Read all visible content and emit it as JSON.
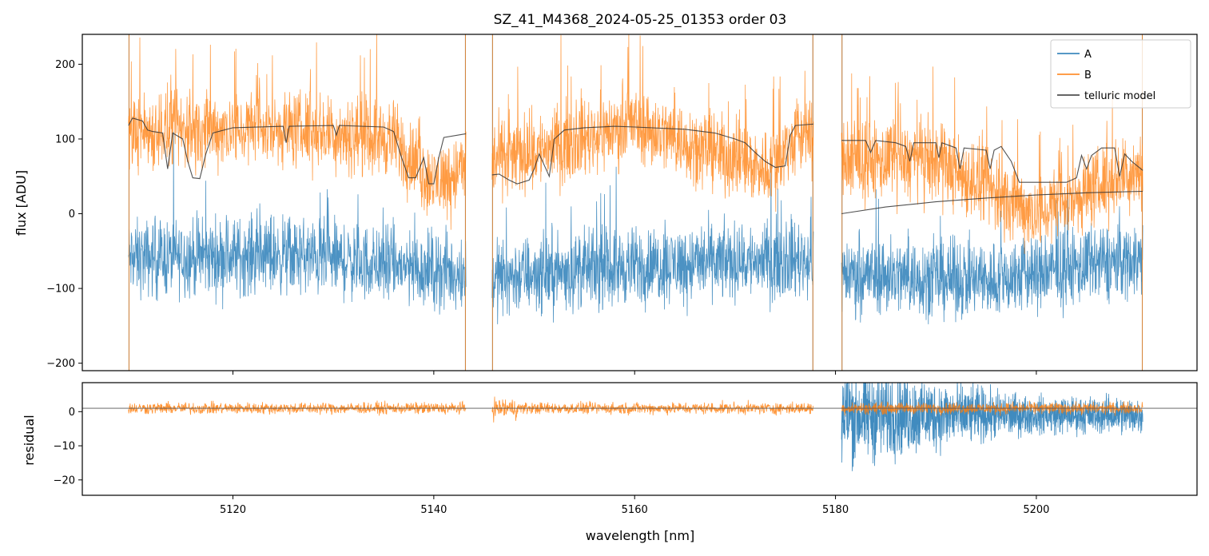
{
  "chart_data": [
    {
      "id": "flux-panel",
      "type": "line",
      "title": "SZ_41_M4368_2024-05-25_01353  order 03",
      "xlabel": "",
      "ylabel": "flux [ADU]",
      "xlim": [
        5105,
        5216
      ],
      "ylim": [
        -210,
        240
      ],
      "yticks": [
        -200,
        -100,
        0,
        100,
        200
      ],
      "yticklabels": [
        "−200",
        "−100",
        "0",
        "100",
        "200"
      ],
      "xticks": [
        5120,
        5140,
        5160,
        5180,
        5200
      ],
      "grid": false,
      "legend": {
        "placement": "top-right",
        "entries": [
          {
            "label": "A",
            "color": "#1f77b4"
          },
          {
            "label": "B",
            "color": "#ff7f0e"
          },
          {
            "label": "telluric model",
            "color": "#333333"
          }
        ]
      },
      "segments": [
        {
          "x_start": 5109.6,
          "x_end": 5143.2
        },
        {
          "x_start": 5145.8,
          "x_end": 5177.8
        },
        {
          "x_start": 5180.6,
          "x_end": 5210.6
        }
      ],
      "series": [
        {
          "name": "A",
          "color": "#1f77b4",
          "baseline": [
            {
              "x": 5110,
              "y": -60
            },
            {
              "x": 5125,
              "y": -55
            },
            {
              "x": 5140,
              "y": -75
            },
            {
              "x": 5146,
              "y": -85
            },
            {
              "x": 5160,
              "y": -70
            },
            {
              "x": 5177,
              "y": -60
            },
            {
              "x": 5181,
              "y": -80
            },
            {
              "x": 5195,
              "y": -90
            },
            {
              "x": 5210,
              "y": -60
            }
          ],
          "noise": 75
        },
        {
          "name": "B",
          "color": "#ff7f0e",
          "baseline": [
            {
              "x": 5110,
              "y": 110
            },
            {
              "x": 5125,
              "y": 115
            },
            {
              "x": 5136,
              "y": 100
            },
            {
              "x": 5140,
              "y": 40
            },
            {
              "x": 5143,
              "y": 60
            },
            {
              "x": 5146,
              "y": 70
            },
            {
              "x": 5160,
              "y": 120
            },
            {
              "x": 5173,
              "y": 60
            },
            {
              "x": 5177,
              "y": 110
            },
            {
              "x": 5181,
              "y": 70
            },
            {
              "x": 5190,
              "y": 70
            },
            {
              "x": 5200,
              "y": 0
            },
            {
              "x": 5210,
              "y": 60
            }
          ],
          "noise": 75
        },
        {
          "name": "telluric model",
          "color": "#333333",
          "points": [
            [
              5109.6,
              118
            ],
            [
              5110,
              128
            ],
            [
              5111,
              124
            ],
            [
              5111.5,
              112
            ],
            [
              5112,
              110
            ],
            [
              5113,
              108
            ],
            [
              5113.5,
              60
            ],
            [
              5114,
              108
            ],
            [
              5115,
              100
            ],
            [
              5115.5,
              70
            ],
            [
              5116,
              48
            ],
            [
              5116.7,
              47
            ],
            [
              5117.3,
              80
            ],
            [
              5118,
              108
            ],
            [
              5120,
              115
            ],
            [
              5125,
              117
            ],
            [
              5125.3,
              95
            ],
            [
              5125.6,
              117
            ],
            [
              5130,
              118
            ],
            [
              5130.3,
              105
            ],
            [
              5130.6,
              118
            ],
            [
              5135,
              116
            ],
            [
              5136,
              110
            ],
            [
              5136.8,
              75
            ],
            [
              5137.5,
              48
            ],
            [
              5138.2,
              48
            ],
            [
              5139,
              75
            ],
            [
              5139.5,
              40
            ],
            [
              5140,
              40
            ],
            [
              5140.5,
              75
            ],
            [
              5141,
              102
            ],
            [
              5143.2,
              107
            ]
          ],
          "segments": [
            [
              [
                5145.8,
                52
              ],
              [
                5146.5,
                53
              ],
              [
                5147.5,
                45
              ],
              [
                5148.3,
                40
              ],
              [
                5149.5,
                45
              ],
              [
                5150,
                60
              ],
              [
                5150.5,
                80
              ],
              [
                5151.5,
                50
              ],
              [
                5152,
                100
              ],
              [
                5153,
                112
              ],
              [
                5155,
                115
              ],
              [
                5158,
                117
              ],
              [
                5160,
                116
              ],
              [
                5165,
                113
              ],
              [
                5168,
                108
              ],
              [
                5170,
                100
              ],
              [
                5171,
                95
              ],
              [
                5172,
                82
              ],
              [
                5173,
                70
              ],
              [
                5174,
                62
              ],
              [
                5175,
                64
              ],
              [
                5175.5,
                105
              ],
              [
                5176,
                118
              ],
              [
                5177.8,
                120
              ]
            ],
            [
              [
                5180.6,
                98
              ],
              [
                5182,
                98
              ],
              [
                5183,
                98
              ],
              [
                5183.5,
                82
              ],
              [
                5184,
                98
              ],
              [
                5186,
                95
              ],
              [
                5187,
                90
              ],
              [
                5187.4,
                70
              ],
              [
                5187.8,
                95
              ],
              [
                5190,
                95
              ],
              [
                5190.3,
                75
              ],
              [
                5190.6,
                95
              ],
              [
                5192,
                88
              ],
              [
                5192.4,
                60
              ],
              [
                5192.8,
                88
              ],
              [
                5195,
                85
              ],
              [
                5195.4,
                60
              ],
              [
                5195.8,
                85
              ],
              [
                5196.5,
                90
              ],
              [
                5197.5,
                70
              ],
              [
                5198.3,
                42
              ],
              [
                5201,
                42
              ],
              [
                5203,
                42
              ],
              [
                5204,
                48
              ],
              [
                5204.5,
                78
              ],
              [
                5205,
                60
              ],
              [
                5205.5,
                78
              ],
              [
                5206.5,
                88
              ],
              [
                5207.8,
                88
              ],
              [
                5208.3,
                50
              ],
              [
                5208.8,
                80
              ],
              [
                5209.5,
                70
              ],
              [
                5210.6,
                58
              ]
            ],
            [
              [
                5180.6,
                0
              ],
              [
                5185,
                9
              ],
              [
                5190,
                16
              ],
              [
                5195,
                21
              ],
              [
                5200,
                25
              ],
              [
                5205,
                28
              ],
              [
                5210.6,
                30
              ]
            ]
          ]
        }
      ]
    },
    {
      "id": "residual-panel",
      "type": "line",
      "title": "",
      "xlabel": "wavelength [nm]",
      "ylabel": "residual",
      "xlim": [
        5105,
        5216
      ],
      "ylim": [
        -24.5,
        8.5
      ],
      "yticks": [
        -20,
        -10,
        0
      ],
      "yticklabels": [
        "−20",
        "−10",
        "0"
      ],
      "xticks": [
        5120,
        5140,
        5160,
        5180,
        5200
      ],
      "xticklabels": [
        "5120",
        "5140",
        "5160",
        "5180",
        "5200"
      ],
      "reference_line": 1,
      "grid": false,
      "series": [
        {
          "name": "A",
          "color": "#1f77b4",
          "x_start": 5180.6,
          "x_end": 5210.6,
          "center": -1,
          "amplitude_start": 22,
          "amplitude_end": 8
        },
        {
          "name": "B",
          "color": "#ff7f0e",
          "segments": [
            {
              "x_start": 5109.6,
              "x_end": 5143.2
            },
            {
              "x_start": 5145.8,
              "x_end": 5177.8
            },
            {
              "x_start": 5180.6,
              "x_end": 5210.6
            }
          ],
          "center": 1,
          "amplitude": 2.5
        }
      ]
    }
  ]
}
